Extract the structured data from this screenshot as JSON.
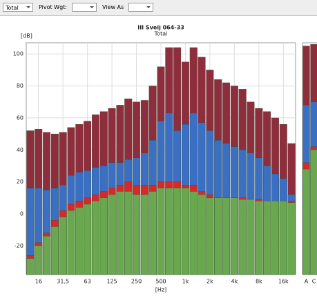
{
  "toolbar": {
    "mode": "Total",
    "pivot_label": "Pivot Wgt:",
    "view_label": "View As"
  },
  "chart_data": [
    {
      "type": "bar",
      "mode": "overlap",
      "title": "III Sveij 064-33",
      "subtitle": "Total",
      "y_label": "[dB]",
      "x_label": "[Hz]",
      "categories": [
        null,
        "16",
        null,
        null,
        "31,5",
        null,
        null,
        "63",
        null,
        null,
        "125",
        null,
        null,
        "250",
        null,
        null,
        "500",
        null,
        null,
        "1k",
        null,
        null,
        "2k",
        null,
        null,
        "4k",
        null,
        null,
        "8k",
        null,
        null,
        "16k",
        null
      ],
      "series": [
        {
          "color": "#8e2e3c",
          "values": [
            52,
            53,
            51,
            50,
            51,
            54,
            56,
            58,
            62,
            64,
            66,
            68,
            72,
            70,
            71,
            80,
            92,
            104,
            104,
            95,
            104,
            98,
            90,
            84,
            82,
            80,
            78,
            70,
            66,
            64,
            60,
            56,
            44
          ]
        },
        {
          "color": "#3a6fc4",
          "values": [
            16,
            16,
            15,
            16,
            18,
            24,
            26,
            27,
            29,
            30,
            32,
            32,
            34,
            35,
            38,
            46,
            58,
            63,
            52,
            56,
            63,
            57,
            52,
            46,
            44,
            42,
            40,
            38,
            35,
            30,
            25,
            22,
            12
          ]
        },
        {
          "color": "#d42a2a",
          "values": [
            -26,
            -18,
            -12,
            -4,
            2,
            6,
            8,
            10,
            12,
            14,
            16,
            18,
            20,
            18,
            18,
            18,
            20,
            20,
            20,
            18,
            18,
            14,
            12,
            10,
            10,
            10,
            10,
            9,
            9,
            8,
            8,
            8,
            8
          ]
        },
        {
          "color": "#6aa84f",
          "values": [
            -28,
            -20,
            -14,
            -8,
            -2,
            2,
            4,
            6,
            8,
            10,
            12,
            14,
            14,
            12,
            12,
            14,
            16,
            16,
            16,
            16,
            14,
            12,
            10,
            10,
            10,
            10,
            9,
            9,
            8,
            8,
            8,
            8,
            7
          ]
        }
      ],
      "ylim": [
        -38,
        107
      ],
      "yticks": [
        -20,
        0,
        20,
        40,
        60,
        80,
        100
      ],
      "grid": true
    },
    {
      "type": "bar",
      "mode": "overlap",
      "categories": [
        "A",
        "C"
      ],
      "series": [
        {
          "color": "#8e2e3c",
          "values": [
            105,
            106
          ]
        },
        {
          "color": "#3a6fc4",
          "values": [
            68,
            70
          ]
        },
        {
          "color": "#d42a2a",
          "values": [
            32,
            42
          ]
        },
        {
          "color": "#6aa84f",
          "values": [
            28,
            40
          ]
        }
      ],
      "ylim": [
        -38,
        107
      ],
      "yticks": [
        -20,
        0,
        20,
        40,
        60,
        80,
        100
      ],
      "grid": true
    }
  ]
}
